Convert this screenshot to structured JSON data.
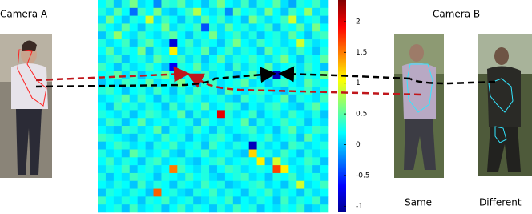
{
  "labels": {
    "camera_a": "Camera A",
    "camera_b": "Camera B",
    "same": "Same",
    "different": "Different"
  },
  "chart_data": {
    "type": "heatmap",
    "values": [
      [
        0.2,
        0.4,
        0.0,
        0.3,
        0.6,
        0.1,
        0.2,
        -0.2,
        0.4,
        0.3,
        0.5,
        0.1,
        0.2,
        0.0,
        0.3,
        0.6,
        0.2,
        0.1,
        0.4,
        0.0,
        0.3,
        0.2,
        0.5,
        0.1,
        -0.1,
        0.3,
        0.2,
        0.4,
        0.1
      ],
      [
        0.3,
        0.1,
        0.5,
        0.2,
        -0.3,
        0.4,
        0.2,
        0.6,
        0.1,
        0.0,
        0.2,
        0.4,
        0.8,
        0.2,
        0.1,
        0.3,
        -0.2,
        0.5,
        0.2,
        0.3,
        0.1,
        0.6,
        0.2,
        0.0,
        0.4,
        0.2,
        0.7,
        0.1,
        0.3
      ],
      [
        0.1,
        0.6,
        0.2,
        0.0,
        0.3,
        0.2,
        0.9,
        0.1,
        0.4,
        0.2,
        0.0,
        0.3,
        0.1,
        0.5,
        0.2,
        0.4,
        0.1,
        0.2,
        0.0,
        0.6,
        0.3,
        0.1,
        0.2,
        0.4,
        0.9,
        0.1,
        0.2,
        0.3,
        0.0
      ],
      [
        0.4,
        0.2,
        0.1,
        0.5,
        0.2,
        0.0,
        0.3,
        0.2,
        0.6,
        0.1,
        0.3,
        0.2,
        0.4,
        -0.4,
        0.3,
        0.1,
        0.5,
        0.2,
        0.3,
        0.1,
        0.2,
        0.4,
        0.0,
        0.3,
        0.2,
        0.5,
        0.1,
        0.6,
        0.2
      ],
      [
        0.0,
        0.3,
        0.7,
        0.2,
        0.1,
        0.4,
        0.2,
        0.1,
        0.3,
        0.5,
        0.2,
        0.0,
        0.3,
        0.2,
        0.6,
        0.1,
        0.2,
        0.4,
        0.1,
        0.3,
        0.0,
        0.2,
        0.3,
        0.1,
        0.5,
        0.2,
        0.0,
        0.3,
        0.4
      ],
      [
        0.3,
        0.1,
        0.2,
        0.4,
        0.0,
        0.3,
        0.5,
        0.2,
        0.1,
        -0.8,
        0.2,
        0.4,
        0.1,
        0.3,
        0.2,
        0.0,
        0.3,
        0.6,
        0.2,
        0.1,
        0.4,
        0.2,
        0.3,
        0.1,
        0.2,
        0.9,
        0.3,
        0.1,
        0.2
      ],
      [
        0.2,
        0.5,
        0.1,
        0.3,
        0.2,
        0.6,
        0.0,
        0.3,
        0.2,
        1.1,
        0.1,
        0.3,
        0.2,
        0.5,
        0.0,
        0.2,
        0.4,
        0.1,
        0.3,
        0.2,
        0.0,
        0.5,
        0.2,
        0.3,
        0.1,
        0.4,
        0.2,
        0.0,
        0.3
      ],
      [
        0.1,
        0.3,
        0.4,
        0.0,
        0.2,
        0.3,
        0.1,
        0.5,
        0.3,
        0.2,
        0.4,
        0.1,
        0.3,
        0.0,
        0.2,
        0.5,
        0.1,
        0.3,
        0.2,
        0.4,
        0.2,
        0.1,
        0.3,
        0.6,
        0.2,
        0.0,
        0.3,
        0.2,
        0.5
      ],
      [
        0.4,
        0.2,
        0.0,
        0.3,
        0.1,
        0.2,
        0.4,
        0.2,
        0.0,
        -0.7,
        0.3,
        0.2,
        0.5,
        0.1,
        0.3,
        0.2,
        0.0,
        0.4,
        0.1,
        0.3,
        0.2,
        0.5,
        0.1,
        0.2,
        0.3,
        0.1,
        0.4,
        0.2,
        0.0
      ],
      [
        0.2,
        0.3,
        0.5,
        0.1,
        0.4,
        0.0,
        0.2,
        0.3,
        0.6,
        0.2,
        0.1,
        0.3,
        0.2,
        0.4,
        0.1,
        0.2,
        0.3,
        0.0,
        0.2,
        0.5,
        0.1,
        0.3,
        -0.9,
        0.2,
        0.4,
        0.1,
        0.3,
        0.2,
        0.6
      ],
      [
        0.0,
        0.2,
        0.1,
        0.4,
        0.3,
        0.2,
        0.5,
        0.1,
        0.2,
        0.3,
        0.6,
        0.2,
        0.0,
        0.3,
        0.4,
        0.1,
        0.2,
        0.3,
        0.5,
        0.1,
        0.2,
        0.0,
        0.3,
        0.4,
        0.2,
        0.1,
        0.5,
        0.3,
        0.2
      ],
      [
        0.3,
        0.4,
        0.2,
        0.0,
        0.2,
        0.3,
        0.1,
        0.4,
        0.2,
        0.0,
        0.3,
        0.1,
        0.4,
        0.2,
        0.3,
        0.0,
        0.5,
        0.2,
        0.1,
        0.3,
        0.4,
        0.2,
        0.1,
        0.0,
        0.3,
        0.2,
        0.4,
        0.1,
        0.3
      ],
      [
        0.1,
        0.2,
        0.3,
        0.5,
        0.1,
        0.4,
        0.2,
        0.0,
        0.3,
        0.1,
        0.2,
        0.4,
        0.3,
        0.1,
        0.2,
        0.3,
        0.1,
        0.0,
        0.4,
        0.2,
        0.3,
        0.1,
        0.2,
        0.5,
        0.0,
        0.3,
        0.2,
        0.1,
        0.4
      ],
      [
        0.2,
        0.0,
        0.4,
        0.2,
        0.3,
        0.1,
        0.3,
        0.2,
        0.0,
        0.4,
        0.1,
        0.3,
        0.2,
        0.5,
        0.1,
        0.2,
        0.4,
        0.3,
        0.0,
        0.2,
        0.1,
        0.3,
        0.4,
        0.2,
        0.1,
        0.0,
        0.3,
        0.5,
        0.2
      ],
      [
        0.3,
        0.2,
        0.1,
        0.3,
        0.0,
        0.2,
        0.4,
        0.3,
        0.1,
        0.2,
        0.5,
        0.0,
        0.3,
        0.1,
        0.2,
        2.0,
        0.3,
        0.1,
        0.2,
        0.4,
        0.0,
        0.2,
        0.3,
        0.1,
        0.4,
        0.2,
        0.1,
        0.3,
        0.0
      ],
      [
        0.1,
        0.4,
        0.3,
        0.0,
        0.2,
        0.5,
        0.1,
        0.2,
        0.3,
        0.1,
        0.2,
        0.3,
        0.0,
        0.4,
        0.2,
        0.1,
        0.3,
        0.2,
        0.5,
        0.0,
        0.3,
        0.1,
        0.2,
        0.4,
        0.2,
        0.3,
        0.0,
        0.2,
        0.1
      ],
      [
        0.2,
        0.1,
        0.0,
        0.4,
        0.3,
        0.1,
        0.2,
        0.5,
        0.0,
        0.3,
        0.2,
        0.1,
        0.4,
        0.2,
        0.0,
        0.3,
        0.1,
        0.2,
        0.3,
        0.4,
        0.1,
        0.2,
        0.0,
        0.3,
        0.5,
        0.1,
        0.2,
        0.4,
        0.3
      ],
      [
        0.4,
        0.3,
        0.2,
        0.1,
        0.0,
        0.3,
        0.2,
        0.1,
        0.4,
        0.2,
        0.3,
        0.0,
        0.2,
        0.1,
        0.3,
        0.4,
        0.2,
        0.0,
        0.1,
        0.3,
        0.2,
        0.4,
        0.1,
        0.2,
        0.3,
        0.0,
        0.5,
        0.2,
        0.1
      ],
      [
        0.0,
        0.2,
        0.4,
        0.3,
        0.1,
        0.2,
        0.0,
        0.3,
        0.2,
        0.4,
        0.1,
        0.2,
        0.3,
        0.0,
        0.4,
        0.2,
        0.1,
        0.3,
        0.2,
        -0.9,
        0.3,
        0.1,
        0.2,
        0.0,
        0.4,
        0.3,
        0.1,
        0.2,
        0.3
      ],
      [
        0.3,
        0.1,
        0.2,
        0.0,
        0.5,
        0.3,
        0.1,
        0.2,
        0.4,
        0.1,
        0.0,
        0.3,
        0.2,
        0.4,
        0.1,
        0.2,
        0.3,
        0.1,
        0.0,
        1.2,
        0.2,
        0.3,
        0.1,
        0.4,
        0.2,
        0.0,
        0.3,
        0.1,
        0.2
      ],
      [
        0.2,
        0.4,
        0.1,
        0.3,
        0.2,
        0.0,
        0.3,
        0.4,
        0.1,
        0.2,
        0.3,
        0.1,
        0.0,
        0.2,
        0.3,
        0.4,
        0.1,
        0.2,
        0.3,
        0.2,
        1.1,
        0.0,
        0.9,
        0.3,
        0.1,
        0.2,
        0.4,
        0.3,
        0.0
      ],
      [
        0.1,
        0.3,
        0.2,
        0.4,
        0.0,
        0.2,
        0.3,
        0.1,
        0.2,
        1.5,
        0.4,
        0.2,
        0.1,
        0.3,
        0.0,
        0.2,
        0.4,
        0.3,
        0.1,
        0.2,
        0.3,
        0.2,
        1.7,
        1.1,
        0.2,
        0.1,
        0.3,
        0.0,
        0.2
      ],
      [
        0.3,
        0.0,
        0.2,
        0.1,
        0.4,
        0.3,
        0.2,
        0.0,
        0.3,
        0.2,
        0.1,
        0.4,
        0.2,
        0.3,
        0.1,
        0.0,
        0.2,
        0.3,
        0.4,
        0.1,
        0.2,
        0.0,
        0.3,
        0.2,
        0.4,
        0.1,
        0.2,
        0.3,
        0.1
      ],
      [
        0.2,
        0.1,
        0.3,
        0.2,
        0.0,
        0.4,
        0.1,
        0.3,
        0.2,
        0.0,
        0.3,
        0.2,
        0.1,
        0.4,
        0.2,
        0.3,
        0.0,
        0.1,
        0.2,
        0.3,
        0.4,
        0.1,
        0.2,
        0.0,
        0.3,
        0.9,
        0.1,
        0.2,
        0.4
      ],
      [
        0.0,
        0.3,
        0.2,
        0.1,
        0.3,
        0.2,
        0.0,
        1.6,
        0.2,
        0.3,
        0.1,
        0.0,
        0.3,
        0.2,
        0.4,
        0.1,
        0.3,
        0.2,
        0.0,
        0.3,
        0.2,
        0.4,
        0.1,
        0.3,
        0.2,
        0.0,
        0.3,
        0.1,
        0.2
      ],
      [
        0.4,
        0.2,
        0.1,
        0.3,
        0.2,
        0.0,
        0.3,
        0.2,
        0.4,
        0.1,
        0.2,
        0.3,
        0.0,
        0.1,
        0.3,
        0.2,
        0.4,
        0.0,
        0.2,
        0.1,
        0.3,
        0.2,
        0.0,
        0.4,
        0.1,
        0.3,
        0.2,
        0.4,
        0.0
      ],
      [
        0.1,
        0.2,
        0.3,
        0.0,
        0.4,
        0.1,
        0.2,
        0.3,
        0.0,
        0.2,
        0.4,
        0.1,
        0.3,
        0.2,
        0.0,
        0.3,
        0.1,
        0.4,
        0.2,
        0.3,
        0.0,
        0.2,
        0.1,
        0.3,
        0.2,
        0.4,
        0.0,
        0.1,
        0.3
      ]
    ],
    "colormap": "jet",
    "colorbar": {
      "lim": [
        -1.1,
        2.35
      ],
      "ticks": [
        -1,
        -0.5,
        0,
        0.5,
        1,
        1.5,
        2
      ]
    }
  }
}
